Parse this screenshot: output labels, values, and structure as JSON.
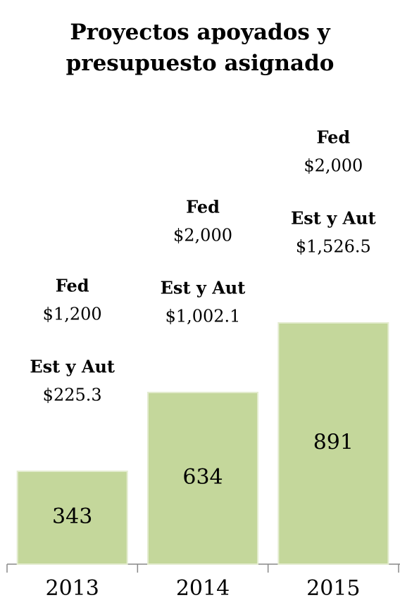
{
  "chart_data": {
    "type": "bar",
    "title": "Proyectos apoyados y presupuesto asignado",
    "categories": [
      "2013",
      "2014",
      "2015"
    ],
    "values": [
      343,
      634,
      891
    ],
    "color": "#c4d79b",
    "ylim": [
      0,
      2000
    ],
    "annotations": [
      {
        "fed_label": "Fed",
        "fed_value": "$1,200",
        "est_label": "Est y Aut",
        "est_value": "$225.3"
      },
      {
        "fed_label": "Fed",
        "fed_value": "$2,000",
        "est_label": "Est y Aut",
        "est_value": "$1,002.1"
      },
      {
        "fed_label": "Fed",
        "fed_value": "$2,000",
        "est_label": "Est y Aut",
        "est_value": "$1,526.5"
      }
    ]
  }
}
